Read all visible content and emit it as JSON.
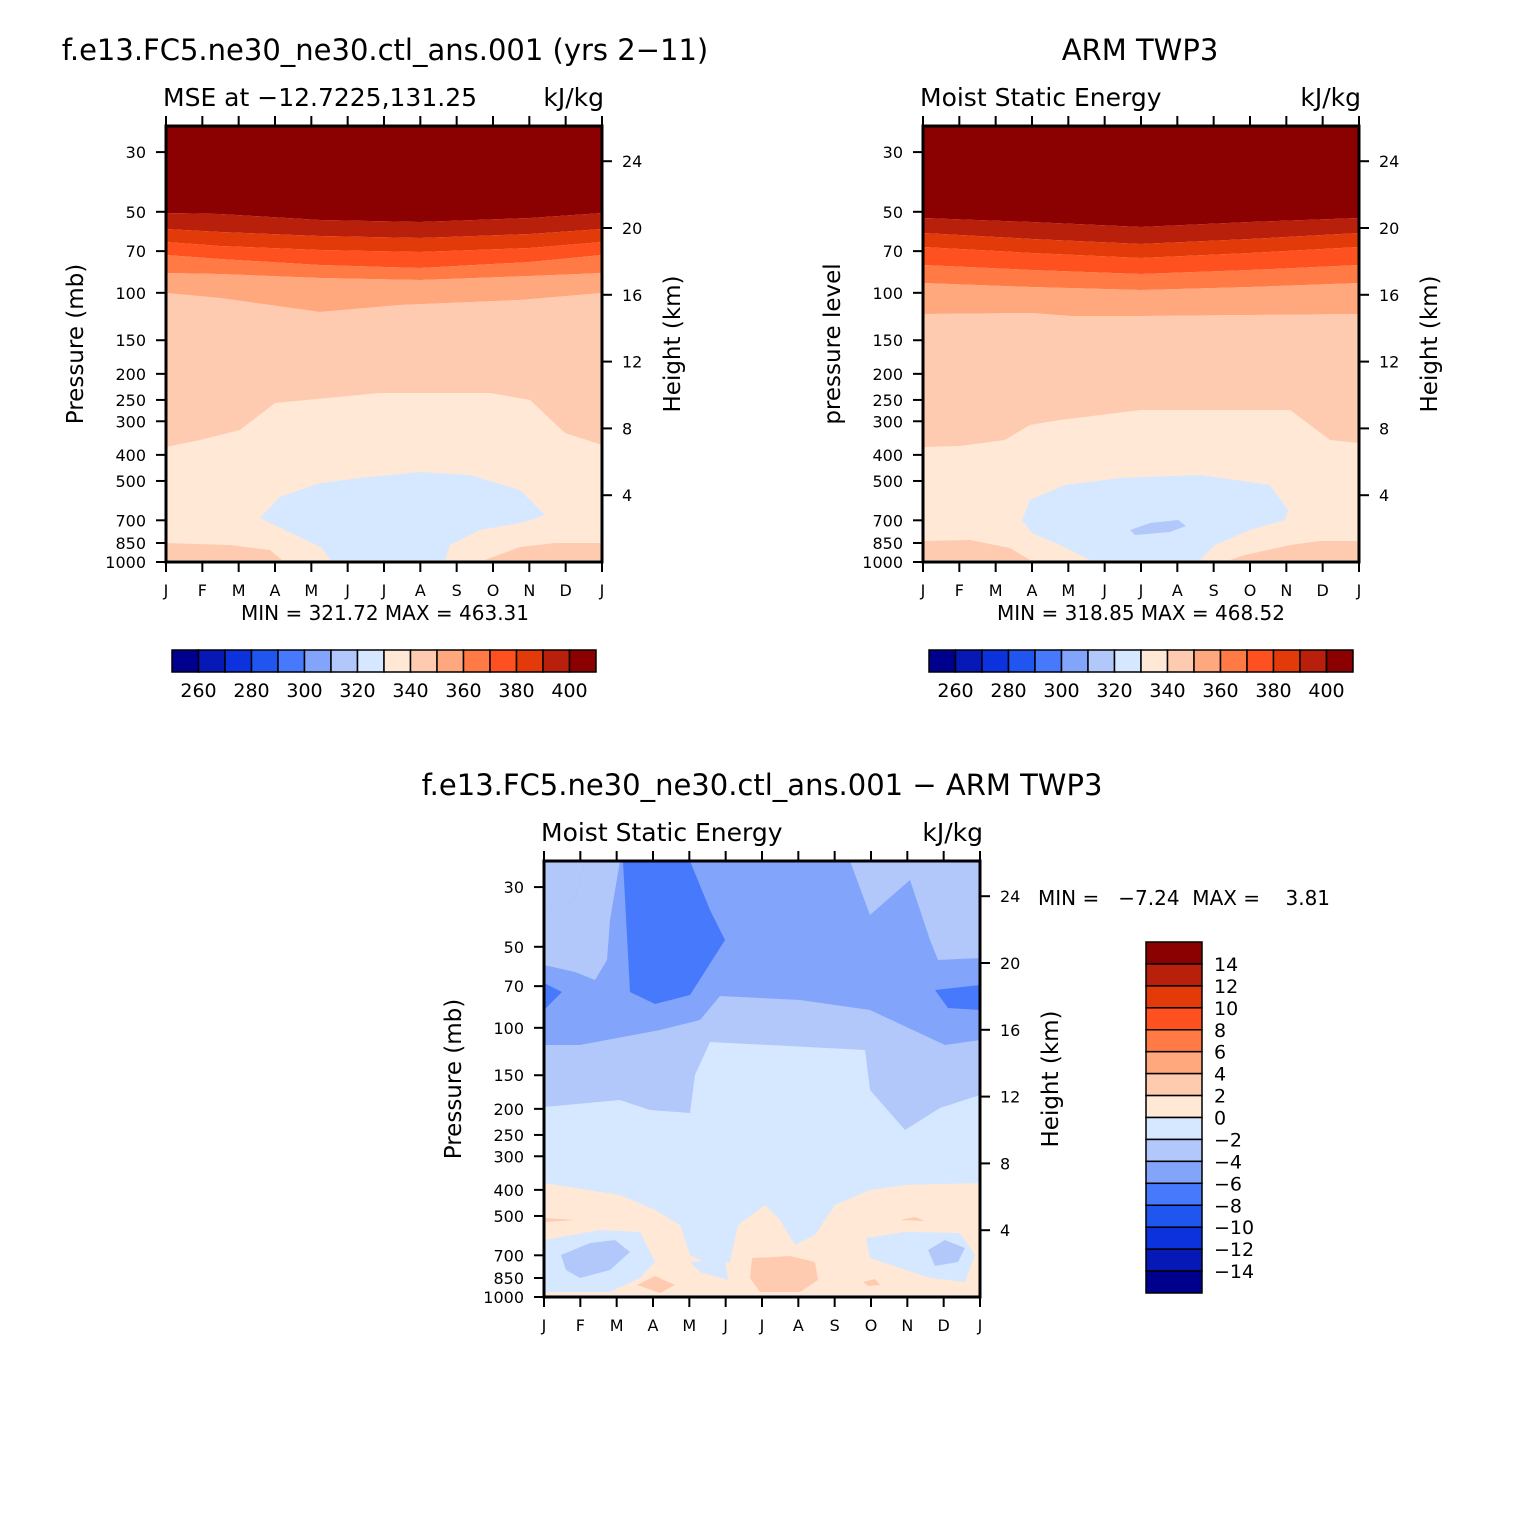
{
  "figure": {
    "panel_model": {
      "title": "f.e13.FC5.ne30_ne30.ctl_ans.001 (yrs 2−11)",
      "left_string": "MSE at −12.7225,131.25",
      "right_string": "kJ/kg",
      "ylabel": "Pressure (mb)",
      "ylabel_right": "Height (km)",
      "minmax": "MIN = 321.72 MAX = 463.31"
    },
    "panel_obs": {
      "title": "ARM TWP3",
      "left_string": "Moist Static Energy",
      "right_string": "kJ/kg",
      "ylabel": "pressure level",
      "ylabel_right": "Height (km)",
      "minmax": "MIN = 318.85 MAX = 468.52"
    },
    "panel_diff": {
      "title": "f.e13.FC5.ne30_ne30.ctl_ans.001 − ARM TWP3",
      "left_string": "Moist Static Energy",
      "right_string": "kJ/kg",
      "ylabel": "Pressure (mb)",
      "ylabel_right": "Height (km)",
      "minmax": "MIN =   −7.24  MAX =    3.81"
    },
    "month_ticks": [
      "J",
      "F",
      "M",
      "A",
      "M",
      "J",
      "J",
      "A",
      "S",
      "O",
      "N",
      "D",
      "J"
    ],
    "pressure_ticks": [
      "30",
      "50",
      "70",
      "100",
      "150",
      "200",
      "250",
      "300",
      "400",
      "500",
      "700",
      "850",
      "1000"
    ],
    "height_ticks": [
      "24",
      "20",
      "16",
      "12",
      "8",
      "4"
    ],
    "cb_labels_top": [
      "260",
      "280",
      "300",
      "320",
      "340",
      "360",
      "380",
      "400"
    ],
    "cb_labels_diff": [
      "14",
      "12",
      "10",
      "8",
      "6",
      "4",
      "2",
      "0",
      "−2",
      "−4",
      "−6",
      "−8",
      "−10",
      "−12",
      "−14"
    ]
  },
  "colors": {
    "palette_16": [
      "#00008e",
      "#0618b6",
      "#0b32dc",
      "#2055f0",
      "#4679fb",
      "#82a5fb",
      "#b2c8fb",
      "#d6e8ff",
      "#ffe9d6",
      "#ffcbb0",
      "#ffa77d",
      "#ff7a45",
      "#ff5020",
      "#e33a0a",
      "#b8200b",
      "#8b0000"
    ]
  },
  "chart_data": [
    {
      "type": "heatmap",
      "title": "f.e13.FC5.ne30_ne30.ctl_ans.001 (yrs 2−11)",
      "subtitle": "MSE at −12.7225,131.25",
      "units": "kJ/kg",
      "xlabel": "",
      "ylabel": "Pressure (mb)",
      "ylabel_right": "Height (km)",
      "x": [
        "J",
        "F",
        "M",
        "A",
        "M",
        "J",
        "J",
        "A",
        "S",
        "O",
        "N",
        "D",
        "J"
      ],
      "y_pressure_mb": [
        30,
        50,
        70,
        100,
        150,
        200,
        250,
        300,
        400,
        500,
        700,
        850,
        1000
      ],
      "y_height_km": [
        24,
        20,
        16,
        12,
        8,
        4
      ],
      "min": 321.72,
      "max": 463.31,
      "levels": [
        250,
        260,
        270,
        280,
        290,
        300,
        310,
        320,
        330,
        340,
        350,
        360,
        370,
        380,
        390,
        400
      ],
      "contours": [
        {
          "value": 395,
          "top_hpa": 1000,
          "bottom_hpa": 1000,
          "x": [
            0,
            12
          ],
          "base_hpa": [
            52,
            52
          ],
          "top_curve_hpa": [
            [
              0,
              52
            ],
            [
              3,
              54
            ],
            [
              5,
              55.5
            ],
            [
              7,
              55.5
            ],
            [
              9,
              54
            ],
            [
              12,
              52
            ]
          ]
        },
        {
          "value": 385,
          "base_hpa": [
            [
              0,
              58
            ],
            [
              3,
              62
            ],
            [
              5,
              64.5
            ],
            [
              7,
              64.5
            ],
            [
              9,
              62
            ],
            [
              12,
              58
            ]
          ]
        },
        {
          "value": 375,
          "base_hpa": [
            [
              0,
              65
            ],
            [
              3,
              70
            ],
            [
              5,
              73
            ],
            [
              7,
              73
            ],
            [
              9,
              70
            ],
            [
              12,
              65
            ]
          ]
        },
        {
          "value": 365,
          "base_hpa": [
            [
              0,
              74
            ],
            [
              3,
              80
            ],
            [
              5,
              84
            ],
            [
              7,
              84
            ],
            [
              9,
              80
            ],
            [
              12,
              74
            ]
          ]
        },
        {
          "value": 355,
          "base_hpa": [
            [
              0,
              103
            ],
            [
              2.5,
              108
            ],
            [
              4.5,
              118
            ],
            [
              7,
              115
            ],
            [
              9,
              108
            ],
            [
              12,
              99
            ]
          ]
        },
        {
          "value": 345,
          "base_hpa": [
            [
              0,
              385
            ],
            [
              2,
              345
            ],
            [
              3,
              265
            ],
            [
              6,
              240
            ],
            [
              9,
              240
            ],
            [
              10.5,
              335
            ],
            [
              12,
              380
            ]
          ]
        },
        {
          "value": 335,
          "base_hpa": [
            [
              0,
              890
            ],
            [
              4,
              915
            ],
            [
              7.8,
              915
            ],
            [
              12,
              890
            ]
          ]
        },
        {
          "value": 325,
          "region": [
            [
              2.6,
              640
            ],
            [
              4,
              510
            ],
            [
              6,
              470
            ],
            [
              7.5,
              480
            ],
            [
              9.5,
              560
            ],
            [
              10.8,
              660
            ],
            [
              10,
              760
            ],
            [
              8,
              890
            ],
            [
              7.8,
              1000
            ],
            [
              4.4,
              1000
            ],
            [
              4,
              890
            ],
            [
              2.6,
              700
            ]
          ]
        }
      ]
    },
    {
      "type": "heatmap",
      "title": "ARM TWP3",
      "subtitle": "Moist Static Energy",
      "units": "kJ/kg",
      "xlabel": "",
      "ylabel": "pressure level",
      "ylabel_right": "Height (km)",
      "x": [
        "J",
        "F",
        "M",
        "A",
        "M",
        "J",
        "J",
        "A",
        "S",
        "O",
        "N",
        "D",
        "J"
      ],
      "y_pressure_mb": [
        30,
        50,
        70,
        100,
        150,
        200,
        250,
        300,
        400,
        500,
        700,
        850,
        1000
      ],
      "y_height_km": [
        24,
        20,
        16,
        12,
        8,
        4
      ],
      "min": 318.85,
      "max": 468.52,
      "levels": [
        250,
        260,
        270,
        280,
        290,
        300,
        310,
        320,
        330,
        340,
        350,
        360,
        370,
        380,
        390,
        400
      ],
      "contours": [
        {
          "value": 395,
          "base_hpa": [
            [
              0,
              54
            ],
            [
              3,
              57
            ],
            [
              6,
              60
            ],
            [
              9,
              57
            ],
            [
              12,
              54
            ]
          ]
        },
        {
          "value": 385,
          "base_hpa": [
            [
              0,
              60
            ],
            [
              3,
              64
            ],
            [
              6,
              67
            ],
            [
              9,
              64
            ],
            [
              12,
              60
            ]
          ]
        },
        {
          "value": 375,
          "base_hpa": [
            [
              0,
              67
            ],
            [
              3,
              72
            ],
            [
              6,
              76
            ],
            [
              9,
              72
            ],
            [
              12,
              67
            ]
          ]
        },
        {
          "value": 365,
          "base_hpa": [
            [
              0,
              78
            ],
            [
              3,
              83
            ],
            [
              6,
              87
            ],
            [
              9,
              83
            ],
            [
              12,
              78
            ]
          ]
        },
        {
          "value": 355,
          "base_hpa": [
            [
              0,
              124
            ],
            [
              4,
              130
            ],
            [
              8,
              128
            ],
            [
              12,
              125
            ]
          ]
        },
        {
          "value": 345,
          "base_hpa": [
            [
              0,
              390
            ],
            [
              2,
              370
            ],
            [
              3,
              290
            ],
            [
              6,
              255
            ],
            [
              9,
              250
            ],
            [
              10.5,
              330
            ],
            [
              12,
              380
            ]
          ]
        },
        {
          "value": 335,
          "base_hpa": [
            [
              0,
              880
            ],
            [
              4,
              910
            ],
            [
              8,
              915
            ],
            [
              12,
              880
            ]
          ]
        },
        {
          "value": 325,
          "region": [
            [
              2.8,
              690
            ],
            [
              3.5,
              520
            ],
            [
              6,
              470
            ],
            [
              8.5,
              470
            ],
            [
              9.8,
              540
            ],
            [
              10.2,
              690
            ],
            [
              8.5,
              830
            ],
            [
              7.5,
              1000
            ],
            [
              4.6,
              1000
            ],
            [
              3.3,
              820
            ]
          ]
        },
        {
          "value": 315,
          "region": [
            [
              5.8,
              770
            ],
            [
              7.2,
              710
            ],
            [
              7.4,
              760
            ],
            [
              6,
              800
            ]
          ]
        }
      ]
    },
    {
      "type": "heatmap",
      "title": "f.e13.FC5.ne30_ne30.ctl_ans.001 − ARM TWP3",
      "subtitle": "Moist Static Energy",
      "units": "kJ/kg",
      "xlabel": "",
      "ylabel": "Pressure (mb)",
      "ylabel_right": "Height (km)",
      "x": [
        "J",
        "F",
        "M",
        "A",
        "M",
        "J",
        "J",
        "A",
        "S",
        "O",
        "N",
        "D",
        "J"
      ],
      "y_pressure_mb": [
        30,
        50,
        70,
        100,
        150,
        200,
        250,
        300,
        400,
        500,
        700,
        850,
        1000
      ],
      "y_height_km": [
        24,
        20,
        16,
        12,
        8,
        4
      ],
      "min": -7.24,
      "max": 3.81,
      "levels": [
        -14,
        -12,
        -10,
        -8,
        -6,
        -4,
        -2,
        0,
        2,
        4,
        6,
        8,
        10,
        12,
        14
      ],
      "description_values": "Negative difference throughout most of the column (−2 to −8 kJ/kg aloft, strongest near 30–70 mb in Mar–May and near 70 mb in Dec), near zero (0 to −2) 200–400 mb, small positive (0 to 4) in the lower troposphere",
      "contours": [
        {
          "value": -1,
          "base": "background"
        },
        {
          "value": -3,
          "region": [
            [
              0,
              200
            ],
            [
              2,
              190
            ],
            [
              3,
              175
            ],
            [
              4,
              180
            ],
            [
              4.5,
              148
            ],
            [
              5,
              123
            ],
            [
              8.5,
              130
            ],
            [
              9,
              175
            ],
            [
              10,
              245
            ],
            [
              11,
              200
            ],
            [
              12,
              195
            ],
            [
              12,
              12
            ],
            [
              0,
              12
            ]
          ]
        },
        {
          "value": -5,
          "region": [
            [
              0,
              37
            ],
            [
              1,
              33
            ],
            [
              1.2,
              12
            ],
            [
              10.8,
              12
            ],
            [
              11,
              38
            ],
            [
              12,
              36
            ],
            [
              12,
              128
            ],
            [
              11,
              128
            ],
            [
              9,
              108
            ],
            [
              7,
              102
            ],
            [
              5,
              97
            ],
            [
              4.5,
              115
            ],
            [
              3,
              123
            ],
            [
              0,
              125
            ]
          ]
        },
        {
          "value": -7,
          "region": [
            [
              2.2,
              12
            ],
            [
              3.9,
              12
            ],
            [
              4.6,
              52
            ],
            [
              4,
              85
            ],
            [
              3,
              92
            ],
            [
              2.4,
              88
            ]
          ]
        },
        {
          "value": -7,
          "region": [
            [
              0,
              75
            ],
            [
              0.5,
              80
            ],
            [
              0,
              90
            ]
          ]
        },
        {
          "value": -7,
          "region": [
            [
              11,
              78
            ],
            [
              12,
              75
            ],
            [
              12,
              92
            ],
            [
              11,
              89
            ],
            [
              10.7,
              80
            ]
          ]
        },
        {
          "value": 1,
          "region": [
            [
              0,
              385
            ],
            [
              2,
              415
            ],
            [
              3,
              440
            ],
            [
              4,
              480
            ],
            [
              4.4,
              620
            ],
            [
              5,
              650
            ],
            [
              5.3,
              700
            ],
            [
              5.8,
              600
            ],
            [
              6,
              540
            ],
            [
              6.7,
              510
            ],
            [
              7.3,
              600
            ],
            [
              7.6,
              650
            ],
            [
              8,
              620
            ],
            [
              8.5,
              520
            ],
            [
              9.5,
              440
            ],
            [
              10.5,
              400
            ],
            [
              12,
              380
            ],
            [
              12,
              950
            ],
            [
              0,
              960
            ]
          ]
        },
        {
          "value": -1,
          "region": [
            [
              0.5,
              740
            ],
            [
              1.5,
              680
            ],
            [
              2.3,
              690
            ],
            [
              2.5,
              780
            ],
            [
              1.8,
              880
            ],
            [
              1,
              900
            ],
            [
              0.6,
              820
            ]
          ]
        },
        {
          "value": -1,
          "region": [
            [
              9,
              700
            ],
            [
              11,
              660
            ],
            [
              11.8,
              700
            ],
            [
              11.5,
              800
            ],
            [
              10.5,
              850
            ],
            [
              9.5,
              820
            ]
          ]
        },
        {
          "value": 3,
          "region": [
            [
              6,
              760
            ],
            [
              7,
              750
            ],
            [
              8.5,
              760
            ],
            [
              8.7,
              880
            ],
            [
              7.5,
              960
            ],
            [
              6.2,
              960
            ]
          ]
        },
        {
          "value": 3,
          "region": [
            [
              2.7,
              980
            ],
            [
              3.3,
              950
            ],
            [
              3.8,
              985
            ],
            [
              3.3,
              1000
            ]
          ]
        }
      ]
    }
  ]
}
